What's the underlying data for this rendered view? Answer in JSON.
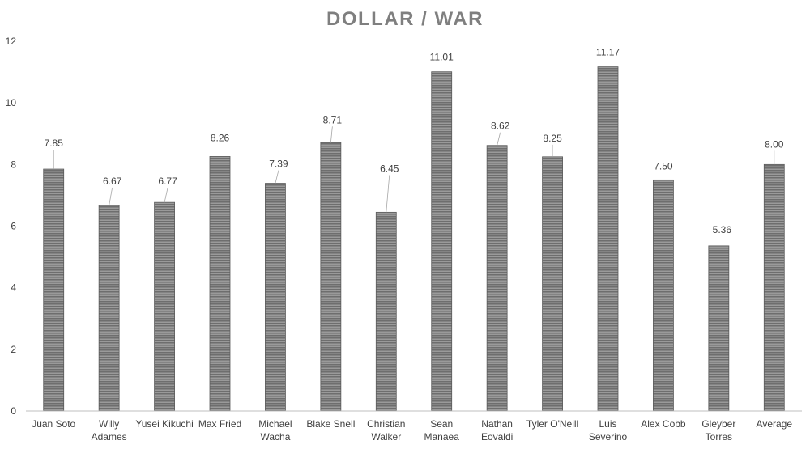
{
  "chart_data": {
    "type": "bar",
    "title": "DOLLAR / WAR",
    "xlabel": "",
    "ylabel": "",
    "ylim": [
      0,
      12
    ],
    "yticks": [
      0,
      2,
      4,
      6,
      8,
      10,
      12
    ],
    "grid": false,
    "legend": "none",
    "bar_color": "#808080",
    "categories": [
      [
        "Juan Soto"
      ],
      [
        "Willy",
        "Adames"
      ],
      [
        "Yusei Kikuchi"
      ],
      [
        "Max Fried"
      ],
      [
        "Michael",
        "Wacha"
      ],
      [
        "Blake Snell"
      ],
      [
        "Christian",
        "Walker"
      ],
      [
        "Sean",
        "Manaea"
      ],
      [
        "Nathan",
        "Eovaldi"
      ],
      [
        "Tyler O'Neill"
      ],
      [
        "Luis",
        "Severino"
      ],
      [
        "Alex Cobb"
      ],
      [
        "Gleyber",
        "Torres"
      ],
      [
        "Average"
      ]
    ],
    "values": [
      7.85,
      6.67,
      6.77,
      8.26,
      7.39,
      8.71,
      6.45,
      11.01,
      8.62,
      8.25,
      11.17,
      7.5,
      5.36,
      8.0
    ],
    "data_labels": [
      "7.85",
      "6.67",
      "6.77",
      "8.26",
      "7.39",
      "8.71",
      "6.45",
      "11.01",
      "8.62",
      "8.25",
      "11.17",
      "7.50",
      "5.36",
      "8.00"
    ]
  }
}
